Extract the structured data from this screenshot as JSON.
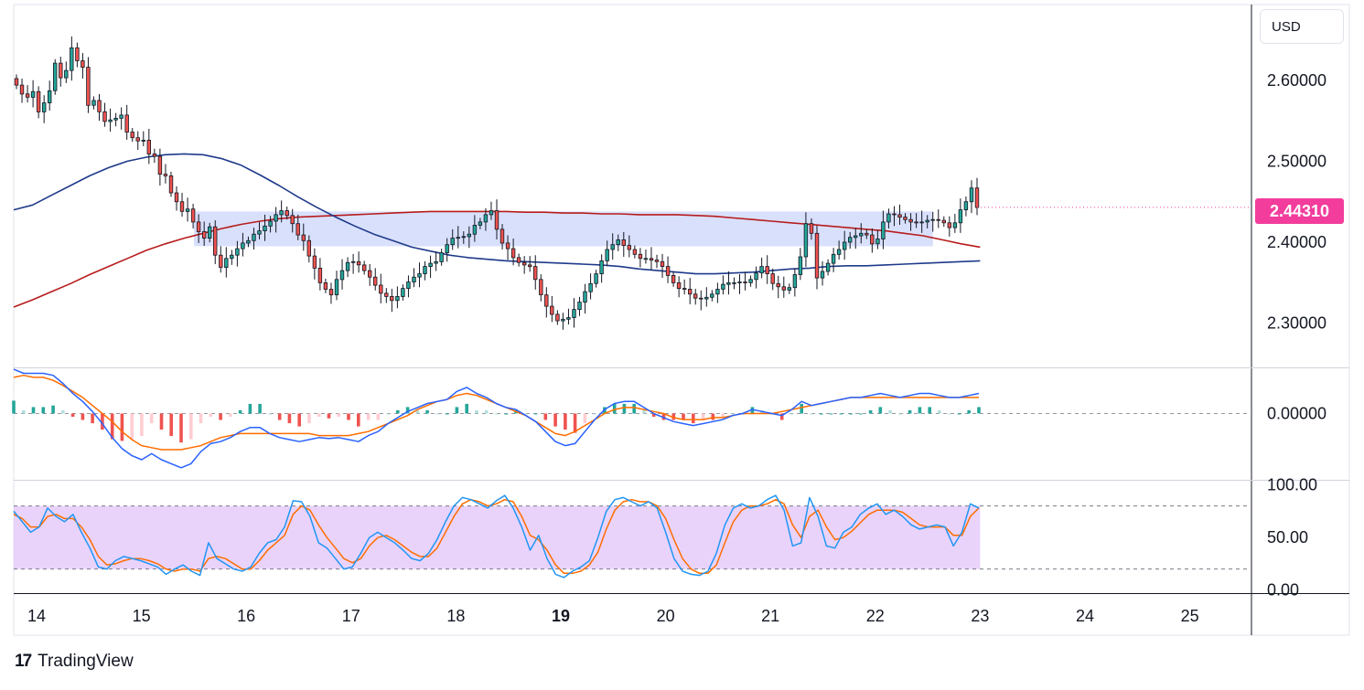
{
  "branding": {
    "logo_text": "TradingView",
    "logo_mark": "17"
  },
  "currency_label": "USD",
  "last_price_label": "2.44310",
  "colors": {
    "up": "#26a69a",
    "down": "#ef5350",
    "candle_outline": "#131722",
    "ma_short": "#1e3a8a",
    "ma_long": "#b71c1c",
    "zone": "#c5cffa",
    "stoch_band": "#e1c4f9",
    "macd": "#2962ff",
    "signal": "#ff6d00",
    "stoch_k": "#2196f3",
    "stoch_d": "#ff6d00",
    "price_badge": "#f23d9c"
  },
  "chart_data": [
    {
      "type": "candlestick",
      "title": "",
      "x_labels": [
        "14",
        "15",
        "16",
        "17",
        "18",
        "19",
        "20",
        "21",
        "22",
        "23",
        "24",
        "25"
      ],
      "x_label_emphasis": "19",
      "x_range": [
        14,
        25.7
      ],
      "y_ticks": [
        "2.60000",
        "2.50000",
        "2.40000",
        "2.30000"
      ],
      "y_tick_values": [
        2.6,
        2.5,
        2.4,
        2.3
      ],
      "ylim": [
        2.2455,
        2.699
      ],
      "last_price": 2.4431,
      "resistance_zone": {
        "x": [
          15.5,
          22.55
        ],
        "y": [
          2.395,
          2.438
        ]
      },
      "closes": [
        2.594,
        2.583,
        2.579,
        2.586,
        2.561,
        2.572,
        2.587,
        2.621,
        2.603,
        2.612,
        2.64,
        2.624,
        2.616,
        2.569,
        2.575,
        2.561,
        2.549,
        2.551,
        2.553,
        2.557,
        2.536,
        2.529,
        2.525,
        2.526,
        2.509,
        2.506,
        2.484,
        2.482,
        2.461,
        2.45,
        2.438,
        2.441,
        2.425,
        2.413,
        2.405,
        2.419,
        2.384,
        2.369,
        2.38,
        2.384,
        2.392,
        2.399,
        2.402,
        2.41,
        2.414,
        2.42,
        2.426,
        2.434,
        2.439,
        2.433,
        2.423,
        2.409,
        2.402,
        2.383,
        2.368,
        2.35,
        2.342,
        2.335,
        2.354,
        2.365,
        2.375,
        2.376,
        2.372,
        2.365,
        2.357,
        2.347,
        2.337,
        2.333,
        2.328,
        2.333,
        2.343,
        2.351,
        2.357,
        2.361,
        2.37,
        2.374,
        2.376,
        2.387,
        2.397,
        2.405,
        2.406,
        2.407,
        2.41,
        2.421,
        2.425,
        2.434,
        2.439,
        2.416,
        2.399,
        2.392,
        2.381,
        2.375,
        2.372,
        2.37,
        2.354,
        2.335,
        2.321,
        2.311,
        2.303,
        2.305,
        2.307,
        2.317,
        2.326,
        2.339,
        2.349,
        2.361,
        2.377,
        2.391,
        2.397,
        2.403,
        2.396,
        2.391,
        2.385,
        2.38,
        2.38,
        2.378,
        2.376,
        2.37,
        2.359,
        2.35,
        2.343,
        2.342,
        2.336,
        2.331,
        2.33,
        2.332,
        2.336,
        2.342,
        2.348,
        2.35,
        2.35,
        2.351,
        2.35,
        2.354,
        2.362,
        2.37,
        2.361,
        2.349,
        2.345,
        2.341,
        2.344,
        2.36,
        2.382,
        2.423,
        2.411,
        2.356,
        2.364,
        2.374,
        2.385,
        2.391,
        2.4,
        2.406,
        2.408,
        2.411,
        2.409,
        2.398,
        2.404,
        2.425,
        2.435,
        2.434,
        2.431,
        2.428,
        2.425,
        2.424,
        2.425,
        2.427,
        2.428,
        2.427,
        2.424,
        2.418,
        2.424,
        2.44,
        2.45,
        2.467,
        2.443
      ],
      "ma_short": [
        2.44,
        2.446,
        2.458,
        2.47,
        2.482,
        2.492,
        2.5,
        2.505,
        2.508,
        2.509,
        2.508,
        2.503,
        2.495,
        2.483,
        2.47,
        2.456,
        2.443,
        2.431,
        2.42,
        2.41,
        2.402,
        2.394,
        2.389,
        2.384,
        2.381,
        2.379,
        2.377,
        2.376,
        2.375,
        2.374,
        2.373,
        2.372,
        2.37,
        2.367,
        2.365,
        2.363,
        2.361,
        2.361,
        2.362,
        2.363,
        2.365,
        2.367,
        2.368,
        2.37,
        2.371,
        2.371,
        2.372,
        2.373,
        2.374,
        2.375,
        2.376,
        2.377
      ],
      "ma_long": [
        2.32,
        2.329,
        2.339,
        2.349,
        2.36,
        2.37,
        2.38,
        2.39,
        2.398,
        2.405,
        2.411,
        2.417,
        2.422,
        2.426,
        2.429,
        2.431,
        2.432,
        2.433,
        2.434,
        2.435,
        2.436,
        2.437,
        2.438,
        2.438,
        2.438,
        2.438,
        2.438,
        2.437,
        2.437,
        2.436,
        2.436,
        2.435,
        2.435,
        2.434,
        2.434,
        2.434,
        2.433,
        2.432,
        2.43,
        2.428,
        2.426,
        2.424,
        2.422,
        2.42,
        2.418,
        2.416,
        2.414,
        2.411,
        2.408,
        2.403,
        2.398,
        2.394
      ]
    },
    {
      "type": "macd",
      "y_ticks": [
        "0.00000"
      ],
      "y_tick_values": [
        0
      ],
      "ylim": [
        -0.066,
        0.045
      ],
      "macd": [
        0.044,
        0.04,
        0.04,
        0.04,
        0.038,
        0.03,
        0.02,
        0.012,
        0.002,
        -0.01,
        -0.024,
        -0.035,
        -0.042,
        -0.046,
        -0.04,
        -0.046,
        -0.05,
        -0.054,
        -0.05,
        -0.038,
        -0.03,
        -0.028,
        -0.024,
        -0.018,
        -0.014,
        -0.014,
        -0.02,
        -0.024,
        -0.026,
        -0.028,
        -0.026,
        -0.024,
        -0.025,
        -0.024,
        -0.026,
        -0.028,
        -0.022,
        -0.018,
        -0.01,
        -0.004,
        0.002,
        0.006,
        0.01,
        0.012,
        0.014,
        0.022,
        0.026,
        0.02,
        0.016,
        0.01,
        0.006,
        0.004,
        -0.002,
        -0.008,
        -0.018,
        -0.028,
        -0.032,
        -0.03,
        -0.018,
        -0.006,
        0.004,
        0.01,
        0.012,
        0.012,
        0.006,
        0.0,
        -0.004,
        -0.008,
        -0.01,
        -0.012,
        -0.01,
        -0.008,
        -0.006,
        -0.002,
        0.0,
        0.004,
        0.002,
        0.0,
        -0.002,
        0.004,
        0.012,
        0.008,
        0.01,
        0.012,
        0.014,
        0.016,
        0.016,
        0.018,
        0.02,
        0.018,
        0.016,
        0.018,
        0.02,
        0.02,
        0.018,
        0.016,
        0.016,
        0.018,
        0.02
      ],
      "signal": [
        0.036,
        0.038,
        0.036,
        0.036,
        0.033,
        0.028,
        0.022,
        0.016,
        0.008,
        0.0,
        -0.008,
        -0.018,
        -0.026,
        -0.032,
        -0.034,
        -0.036,
        -0.036,
        -0.036,
        -0.034,
        -0.032,
        -0.028,
        -0.024,
        -0.022,
        -0.02,
        -0.02,
        -0.02,
        -0.02,
        -0.02,
        -0.02,
        -0.02,
        -0.02,
        -0.022,
        -0.022,
        -0.022,
        -0.022,
        -0.02,
        -0.018,
        -0.014,
        -0.01,
        -0.006,
        -0.002,
        0.004,
        0.008,
        0.012,
        0.014,
        0.018,
        0.02,
        0.018,
        0.014,
        0.01,
        0.006,
        0.002,
        -0.002,
        -0.008,
        -0.014,
        -0.02,
        -0.022,
        -0.018,
        -0.012,
        -0.006,
        0.0,
        0.004,
        0.006,
        0.006,
        0.004,
        0.002,
        0.0,
        -0.004,
        -0.006,
        -0.006,
        -0.006,
        -0.004,
        -0.004,
        -0.002,
        0.0,
        0.0,
        0.0,
        0.0,
        0.002,
        0.004,
        0.006,
        0.008,
        0.01,
        0.012,
        0.014,
        0.016,
        0.016,
        0.016,
        0.016,
        0.016,
        0.016,
        0.016,
        0.016,
        0.016,
        0.016,
        0.016,
        0.016,
        0.016,
        0.016
      ]
    },
    {
      "type": "stochastic",
      "y_ticks": [
        "100.00",
        "50.00",
        "0.00"
      ],
      "y_tick_values": [
        100,
        50,
        0
      ],
      "ylim": [
        -2,
        104
      ],
      "upper_band": 80,
      "lower_band": 20,
      "k": [
        75,
        65,
        55,
        60,
        78,
        70,
        65,
        72,
        55,
        40,
        22,
        20,
        28,
        32,
        30,
        28,
        25,
        22,
        15,
        20,
        24,
        18,
        14,
        45,
        30,
        25,
        20,
        18,
        22,
        35,
        45,
        48,
        60,
        85,
        84,
        70,
        45,
        40,
        30,
        20,
        22,
        35,
        50,
        55,
        50,
        45,
        38,
        30,
        28,
        35,
        48,
        65,
        80,
        88,
        86,
        82,
        78,
        85,
        90,
        78,
        60,
        38,
        52,
        30,
        15,
        12,
        18,
        22,
        28,
        50,
        75,
        86,
        88,
        84,
        80,
        84,
        78,
        55,
        30,
        18,
        15,
        14,
        18,
        35,
        62,
        78,
        82,
        78,
        80,
        86,
        90,
        76,
        42,
        45,
        88,
        70,
        42,
        40,
        55,
        60,
        72,
        78,
        82,
        72,
        76,
        70,
        62,
        58,
        60,
        62,
        60,
        42,
        55,
        82,
        78
      ],
      "d": [
        72,
        68,
        60,
        60,
        70,
        72,
        68,
        68,
        60,
        48,
        32,
        24,
        25,
        28,
        30,
        30,
        28,
        25,
        20,
        18,
        20,
        20,
        18,
        30,
        32,
        30,
        25,
        20,
        20,
        28,
        38,
        45,
        52,
        72,
        80,
        76,
        62,
        50,
        40,
        30,
        26,
        30,
        42,
        50,
        52,
        48,
        42,
        36,
        32,
        32,
        40,
        55,
        70,
        82,
        86,
        84,
        80,
        82,
        86,
        84,
        70,
        52,
        48,
        38,
        24,
        16,
        16,
        18,
        24,
        36,
        58,
        76,
        84,
        86,
        84,
        84,
        80,
        68,
        48,
        30,
        20,
        16,
        16,
        24,
        45,
        65,
        76,
        80,
        80,
        82,
        86,
        82,
        62,
        50,
        70,
        76,
        60,
        48,
        50,
        56,
        64,
        72,
        76,
        76,
        76,
        74,
        68,
        62,
        60,
        60,
        60,
        52,
        52,
        70,
        78
      ]
    }
  ]
}
